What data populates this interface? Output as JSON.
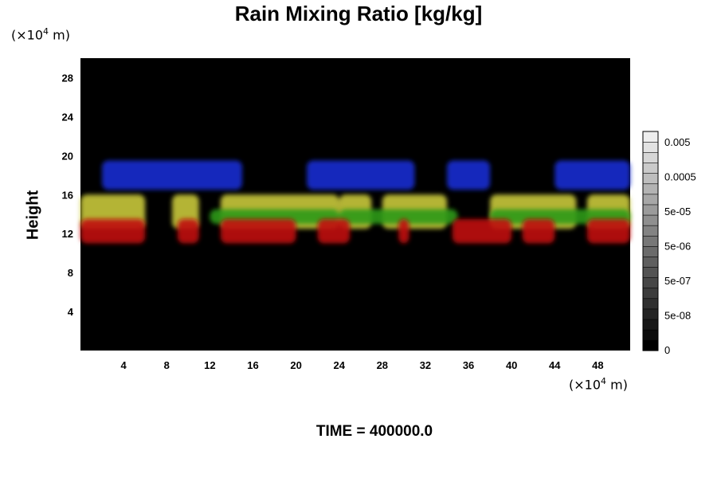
{
  "chart_data": {
    "type": "heatmap",
    "title": "Rain Mixing Ratio [kg/kg]",
    "ylabel": "Height",
    "xlabel": "",
    "x_unit_prefix": "(×10",
    "x_unit_exp": "4",
    "x_unit_suffix": " m)",
    "y_unit_prefix": "(×10",
    "y_unit_exp": "4",
    "y_unit_suffix": " m)",
    "xlim": [
      0,
      51
    ],
    "ylim": [
      0,
      30
    ],
    "xticks": [
      4,
      8,
      12,
      16,
      20,
      24,
      28,
      32,
      36,
      40,
      44,
      48
    ],
    "yticks": [
      4,
      8,
      12,
      16,
      20,
      24,
      28
    ],
    "grid": false,
    "background_color": "#000000",
    "colorbar": {
      "labels": [
        "0.005",
        "0.0005",
        "5e-05",
        "5e-06",
        "5e-07",
        "5e-08",
        "0"
      ],
      "levels": 21,
      "colors_from": "#000000",
      "colors_to": "#eeeeee"
    },
    "features": [
      {
        "layer": "upper",
        "color": "#1a2bd0",
        "y_range": [
          16.5,
          19.5
        ],
        "segments": [
          [
            2,
            15
          ],
          [
            21,
            31
          ],
          [
            34,
            38
          ],
          [
            44,
            51
          ]
        ]
      },
      {
        "layer": "middle",
        "color": "#c8c83a",
        "y_range": [
          12.5,
          16
        ],
        "segments": [
          [
            0,
            6
          ],
          [
            8.5,
            11
          ],
          [
            13,
            24
          ],
          [
            24,
            27
          ],
          [
            28,
            34
          ],
          [
            38,
            46
          ],
          [
            47,
            51
          ]
        ]
      },
      {
        "layer": "middle-edge",
        "color": "#2f9a1a",
        "y_range": [
          13,
          14.5
        ],
        "segments": [
          [
            12,
            24
          ],
          [
            24,
            35
          ],
          [
            38,
            51
          ]
        ]
      },
      {
        "layer": "lower",
        "color": "#c01010",
        "y_range": [
          11,
          13.5
        ],
        "segments": [
          [
            0,
            6
          ],
          [
            9,
            11
          ],
          [
            13,
            20
          ],
          [
            22,
            25
          ],
          [
            29.5,
            30.5
          ],
          [
            34.5,
            40
          ],
          [
            41,
            44
          ],
          [
            47,
            51
          ]
        ]
      }
    ]
  },
  "footer": {
    "time_label": "TIME = 400000.0"
  }
}
